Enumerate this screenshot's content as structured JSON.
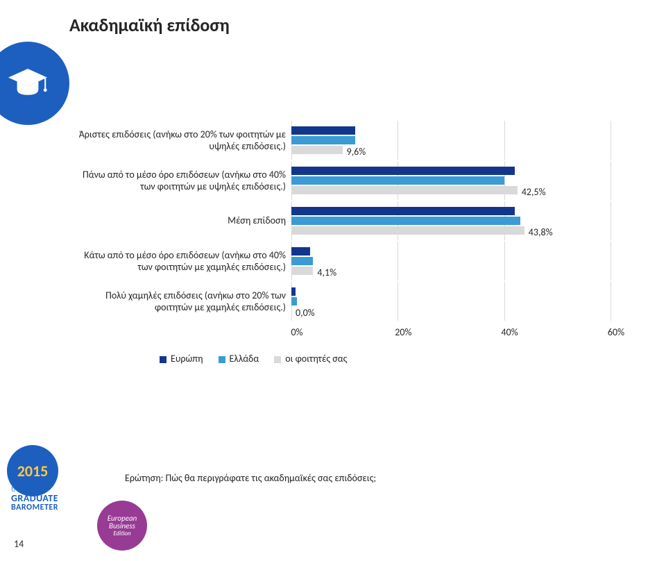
{
  "title": "Ακαδημαϊκή επίδοση",
  "chart": {
    "type": "bar",
    "xmax": 60,
    "xtick_step": 20,
    "grid_color": "#d9d9d9",
    "background": "#ffffff",
    "label_fontsize": 14,
    "value_fontsize": 14,
    "colors": {
      "europe": "#13368d",
      "greece": "#3b9bd4",
      "you": "#d9d9d9"
    },
    "categories": [
      {
        "label": "Άριστες επιδόσεις (ανήκω στο 20% των φοιτητών με υψηλές επιδόσεις.)",
        "europe": 12.0,
        "greece": 12.0,
        "you": 9.6,
        "you_label": "9,6%"
      },
      {
        "label": "Πάνω από το μέσο όρο επιδόσεων (ανήκω στο 40% των φοιτητών με υψηλές επιδόσεις.)",
        "europe": 42.0,
        "greece": 40.0,
        "you": 42.5,
        "you_label": "42,5%"
      },
      {
        "label": "Μέση επίδοση",
        "europe": 42.0,
        "greece": 43.0,
        "you": 43.8,
        "you_label": "43,8%"
      },
      {
        "label": "Κάτω από το μέσο όρο επιδόσεων (ανήκω στο 40% των φοιτητών με χαμηλές επιδόσεις.)",
        "europe": 3.5,
        "greece": 4.0,
        "you": 4.1,
        "you_label": "4,1%"
      },
      {
        "label": "Πολύ χαμηλές επιδόσεις (ανήκω στο 20% των φοιτητών με χαμηλές επιδόσεις.)",
        "europe": 0.8,
        "greece": 1.0,
        "you": 0.0,
        "you_label": "0,0%"
      }
    ],
    "xticks": [
      "0%",
      "20%",
      "40%",
      "60%"
    ],
    "legend": {
      "europe": "Ευρώπη",
      "greece": "Ελλάδα",
      "you": "οι φοιτητές σας"
    }
  },
  "question": "Ερώτηση: Πώς θα περιγράφατε τις ακαδημαϊκές σας επιδόσεις;",
  "page_number": "14",
  "barometer": {
    "year": "2015",
    "brand": "trendence",
    "line1": "GRADUATE",
    "line2": "BAROMETER"
  },
  "edition": {
    "line1": "European",
    "line2": "Business",
    "line3": "Edition"
  }
}
